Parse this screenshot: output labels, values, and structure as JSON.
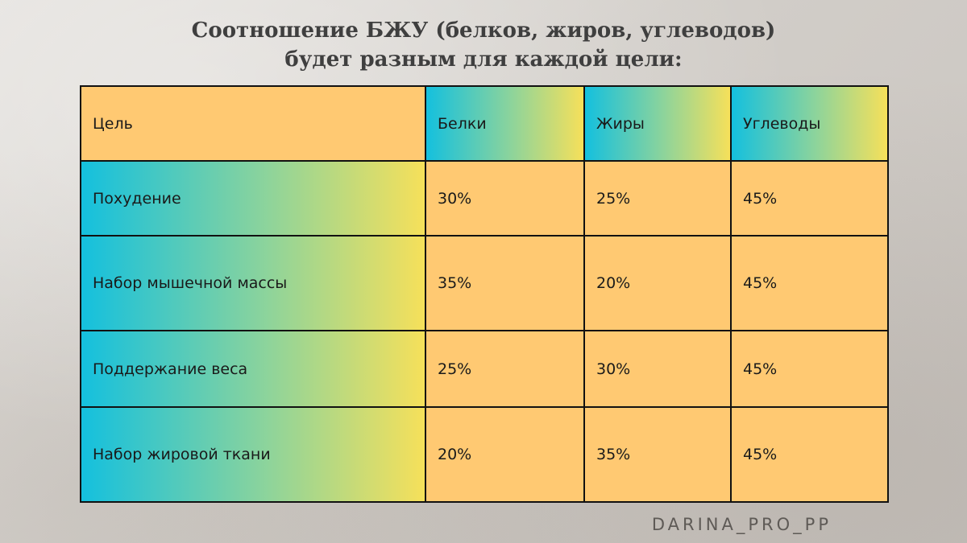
{
  "title": {
    "line1": "Соотношение БЖУ (белков, жиров, углеводов)",
    "line2": "будет разным для каждой цели:"
  },
  "table": {
    "headers": [
      "Цель",
      "Белки",
      "Жиры",
      "Углеводы"
    ],
    "rows": [
      [
        "Похудение",
        "30%",
        "25%",
        "45%"
      ],
      [
        "Набор мышечной массы",
        "35%",
        "20%",
        "45%"
      ],
      [
        "Поддержание веса",
        "25%",
        "30%",
        "45%"
      ],
      [
        "Набор жировой ткани",
        "20%",
        "35%",
        "45%"
      ]
    ]
  },
  "colors": {
    "cell_orange": "#ffc972",
    "gradient_start": "#14c0de",
    "gradient_end": "#f6e05a",
    "title_text": "#3f3f3f"
  },
  "watermark": "DARINA_PRO_PP"
}
